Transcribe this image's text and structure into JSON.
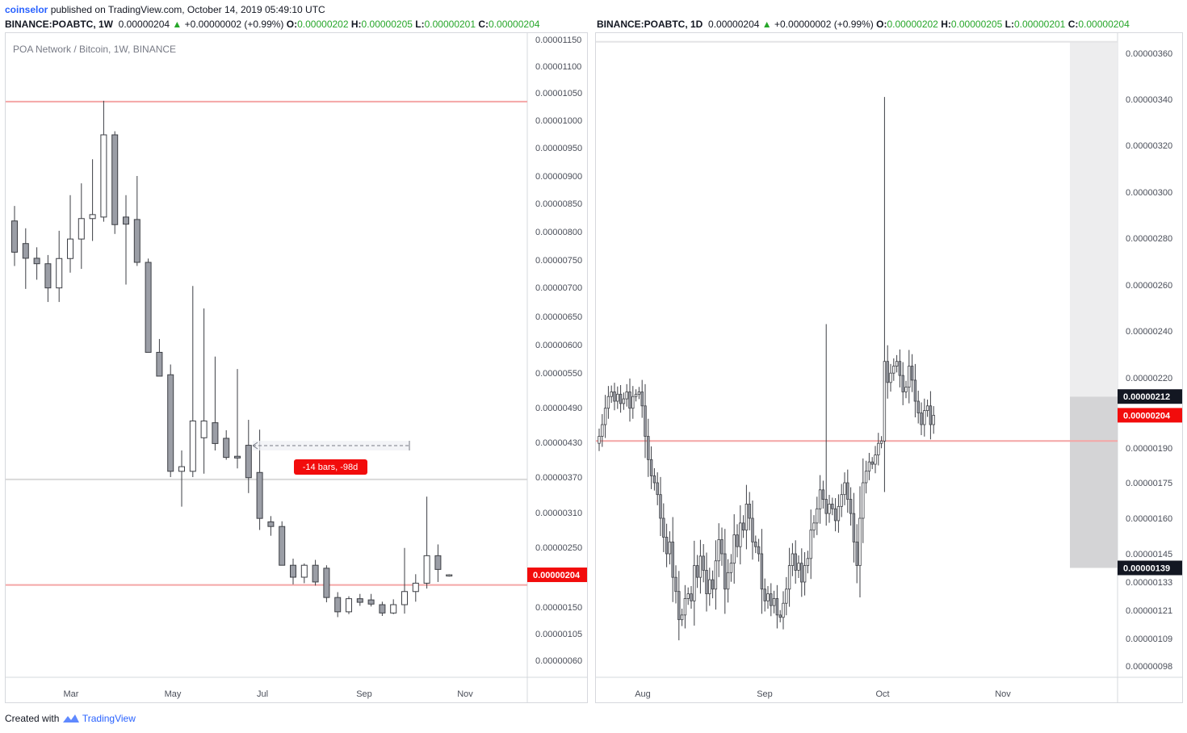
{
  "header": {
    "author": "coinselor",
    "published": "published on TradingView.com, October 14, 2019 05:49:10 UTC"
  },
  "left_legend": {
    "symbol": "BINANCE:POABTC, 1W",
    "last": "0.00000204",
    "change": "+0.00000002 (+0.99%)",
    "o_label": "O:",
    "o": "0.00000202",
    "h_label": "H:",
    "h": "0.00000205",
    "l_label": "L:",
    "l": "0.00000201",
    "c_label": "C:",
    "c": "0.00000204"
  },
  "right_legend": {
    "symbol": "BINANCE:POABTC, 1D",
    "last": "0.00000204",
    "change": "+0.00000002 (+0.99%)",
    "o_label": "O:",
    "o": "0.00000202",
    "h_label": "H:",
    "h": "0.00000205",
    "l_label": "L:",
    "l": "0.00000201",
    "c_label": "C:",
    "c": "0.00000204"
  },
  "footer": {
    "created": "Created with",
    "brand": "TradingView"
  },
  "colors": {
    "candle_down": "#9b9ea6",
    "candle_up": "#ffffff",
    "wick": "#3d3f45",
    "hline_red": "#f4a6a6",
    "hline_gray": "#d9d9d9",
    "price_tag": "#f20c0c",
    "dark_tag": "#131722",
    "up_green": "#26a629"
  },
  "chart_data": [
    {
      "type": "candlestick",
      "pane_title": "POA Network / Bitcoin, 1W, BINANCE",
      "interval": "1W",
      "x_labels": [
        "Mar",
        "May",
        "Jul",
        "Sep",
        "Nov"
      ],
      "y_ticks": [
        "0.00001150",
        "0.00001100",
        "0.00001050",
        "0.00001000",
        "0.00000950",
        "0.00000900",
        "0.00000850",
        "0.00000800",
        "0.00000750",
        "0.00000700",
        "0.00000650",
        "0.00000600",
        "0.00000550",
        "0.00000490",
        "0.00000430",
        "0.00000370",
        "0.00000310",
        "0.00000250",
        "0.00000150",
        "0.00000105",
        "0.00000060"
      ],
      "current_price_tag": "0.00000204",
      "measure_label": "-14 bars, -98d",
      "candles": [
        {
          "o": 8.19e-06,
          "h": 8.455e-06,
          "l": 7.39e-06,
          "c": 7.637e-06
        },
        {
          "o": 7.79e-06,
          "h": 8.06e-06,
          "l": 6.974e-06,
          "c": 7.53e-06
        },
        {
          "o": 7.53e-06,
          "h": 7.724e-06,
          "l": 7.14e-06,
          "c": 7.431e-06
        },
        {
          "o": 7.431e-06,
          "h": 7.587e-06,
          "l": 6.749e-06,
          "c": 6.991e-06
        },
        {
          "o": 6.991e-06,
          "h": 8.016e-06,
          "l": 6.749e-06,
          "c": 7.525e-06
        },
        {
          "o": 7.525e-06,
          "h": 8.65e-06,
          "l": 7.268e-06,
          "c": 7.87e-06
        },
        {
          "o": 7.87e-06,
          "h": 8.866e-06,
          "l": 7.337e-06,
          "c": 8.232e-06
        },
        {
          "o": 8.232e-06,
          "h": 9.296e-06,
          "l": 7.836e-06,
          "c": 8.302e-06
        },
        {
          "o": 8.259e-06,
          "h": 1.0355e-05,
          "l": 8.176e-06,
          "c": 9.735e-06
        },
        {
          "o": 9.735e-06,
          "h": 9.8e-06,
          "l": 7.96e-06,
          "c": 8.125e-06
        },
        {
          "o": 8.259e-06,
          "h": 8.651e-06,
          "l": 7.052e-06,
          "c": 8.133e-06
        },
        {
          "o": 8.216e-06,
          "h": 9e-06,
          "l": 7.391e-06,
          "c": 7.456e-06
        },
        {
          "o": 7.456e-06,
          "h": 7.524e-06,
          "l": 5.865e-06,
          "c": 5.865e-06
        },
        {
          "o": 5.865e-06,
          "h": 6.101e-06,
          "l": 5.469e-06,
          "c": 5.445e-06
        },
        {
          "o": 5.469e-06,
          "h": 5.65e-06,
          "l": 3.7e-06,
          "c": 3.8e-06
        },
        {
          "o": 3.8e-06,
          "h": 4.16e-06,
          "l": 3.2e-06,
          "c": 3.88e-06
        },
        {
          "o": 3.8e-06,
          "h": 7.025e-06,
          "l": 3.7e-06,
          "c": 4.67e-06
        },
        {
          "o": 4.38e-06,
          "h": 6.638e-06,
          "l": 3.76e-06,
          "c": 4.67e-06
        },
        {
          "o": 4.64e-06,
          "h": 5.79e-06,
          "l": 4.16e-06,
          "c": 4.28e-06
        },
        {
          "o": 4.37e-06,
          "h": 4.51e-06,
          "l": 4e-06,
          "c": 4.04e-06
        },
        {
          "o": 4.06e-06,
          "h": 5.57e-06,
          "l": 3.85e-06,
          "c": 4.03e-06
        },
        {
          "o": 4.25e-06,
          "h": 4.69e-06,
          "l": 3.43e-06,
          "c": 3.69e-06
        },
        {
          "o": 3.78e-06,
          "h": 4.52e-06,
          "l": 2.8e-06,
          "c": 3e-06
        },
        {
          "o": 2.94e-06,
          "h": 3.04e-06,
          "l": 2.7e-06,
          "c": 2.86e-06
        },
        {
          "o": 2.86e-06,
          "h": 2.95e-06,
          "l": 2.2e-06,
          "c": 2.2e-06
        },
        {
          "o": 2.2e-06,
          "h": 2.31e-06,
          "l": 1.88e-06,
          "c": 2e-06
        },
        {
          "o": 2e-06,
          "h": 2.23e-06,
          "l": 1.9e-06,
          "c": 2.2e-06
        },
        {
          "o": 2.2e-06,
          "h": 2.29e-06,
          "l": 1.86e-06,
          "c": 1.92e-06
        },
        {
          "o": 2.15e-06,
          "h": 2.2e-06,
          "l": 1.58e-06,
          "c": 1.66e-06
        },
        {
          "o": 1.66e-06,
          "h": 1.75e-06,
          "l": 1.33e-06,
          "c": 1.42e-06
        },
        {
          "o": 1.42e-06,
          "h": 1.68e-06,
          "l": 1.38e-06,
          "c": 1.64e-06
        },
        {
          "o": 1.64e-06,
          "h": 1.72e-06,
          "l": 1.52e-06,
          "c": 1.58e-06
        },
        {
          "o": 1.62e-06,
          "h": 1.72e-06,
          "l": 1.51e-06,
          "c": 1.55e-06
        },
        {
          "o": 1.54e-06,
          "h": 1.59e-06,
          "l": 1.35e-06,
          "c": 1.4e-06
        },
        {
          "o": 1.4e-06,
          "h": 1.63e-06,
          "l": 1.38e-06,
          "c": 1.54e-06
        },
        {
          "o": 1.54e-06,
          "h": 2.49e-06,
          "l": 1.39e-06,
          "c": 1.76e-06
        },
        {
          "o": 1.76e-06,
          "h": 2.05e-06,
          "l": 1.59e-06,
          "c": 1.9e-06
        },
        {
          "o": 1.9e-06,
          "h": 3.37e-06,
          "l": 1.81e-06,
          "c": 2.36e-06
        },
        {
          "o": 2.36e-06,
          "h": 2.55e-06,
          "l": 1.92e-06,
          "c": 2.13e-06
        },
        {
          "o": 2.02e-06,
          "h": 2.05e-06,
          "l": 2.01e-06,
          "c": 2.04e-06
        }
      ],
      "levels": [
        {
          "kind": "resistance",
          "price": 1.034e-05
        },
        {
          "kind": "gray",
          "price": 3.66e-06
        },
        {
          "kind": "support",
          "price": 1.87e-06
        }
      ]
    },
    {
      "type": "candlestick",
      "interval": "1D",
      "x_labels": [
        "Aug",
        "Sep",
        "Oct",
        "Nov"
      ],
      "y_ticks": [
        "0.00000360",
        "0.00000340",
        "0.00000320",
        "0.00000300",
        "0.00000280",
        "0.00000260",
        "0.00000240",
        "0.00000220",
        "0.00000190",
        "0.00000175",
        "0.00000160",
        "0.00000145",
        "0.00000133",
        "0.00000121",
        "0.00000109",
        "0.00000098"
      ],
      "price_tags": [
        "0.00000212",
        "0.00000204",
        "0.00000139"
      ],
      "level": 1.93e-06,
      "ranges": [
        {
          "from": 2.12e-06,
          "to": 1.39e-06,
          "shade": "dark"
        },
        {
          "from": 3.65e-06,
          "to": 2.12e-06,
          "shade": "light"
        }
      ],
      "closes": [
        1.95e-06,
        2e-06,
        2.07e-06,
        2.12e-06,
        2.14e-06,
        2.1e-06,
        2.13e-06,
        2.09e-06,
        2.11e-06,
        2.14e-06,
        2.07e-06,
        2.12e-06,
        2.13e-06,
        2.14e-06,
        2.08e-06,
        1.95e-06,
        1.85e-06,
        1.78e-06,
        1.75e-06,
        1.7e-06,
        1.6e-06,
        1.52e-06,
        1.45e-06,
        1.5e-06,
        1.35e-06,
        1.29e-06,
        1.17e-06,
        1.19e-06,
        1.26e-06,
        1.28e-06,
        1.25e-06,
        1.4e-06,
        1.35e-06,
        1.44e-06,
        1.38e-06,
        1.28e-06,
        1.34e-06,
        1.3e-06,
        1.42e-06,
        1.51e-06,
        1.45e-06,
        1.3e-06,
        1.37e-06,
        1.41e-06,
        1.53e-06,
        1.48e-06,
        1.58e-06,
        1.55e-06,
        1.66e-06,
        1.6e-06,
        1.5e-06,
        1.48e-06,
        1.45e-06,
        1.3e-06,
        1.25e-06,
        1.28e-06,
        1.23e-06,
        1.26e-06,
        1.19e-06,
        1.18e-06,
        1.24e-06,
        1.3e-06,
        1.4e-06,
        1.45e-06,
        1.38e-06,
        1.41e-06,
        1.33e-06,
        1.4e-06,
        1.43e-06,
        1.55e-06,
        1.58e-06,
        1.64e-06,
        1.72e-06,
        1.68e-06,
        1.62e-06,
        1.66e-06,
        1.64e-06,
        1.59e-06,
        1.65e-06,
        1.7e-06,
        1.75e-06,
        1.68e-06,
        1.62e-06,
        1.5e-06,
        1.4e-06,
        1.6e-06,
        1.75e-06,
        1.8e-06,
        1.84e-06,
        1.83e-06,
        1.87e-06,
        1.92e-06,
        1.93e-06,
        2.27e-06,
        2.18e-06,
        2.22e-06,
        2.25e-06,
        2.27e-06,
        2.21e-06,
        2.14e-06,
        2.16e-06,
        2.25e-06,
        2.19e-06,
        2.1e-06,
        2.05e-06,
        2e-06,
        2.06e-06,
        2.08e-06,
        2e-06,
        2.04e-06
      ]
    }
  ]
}
